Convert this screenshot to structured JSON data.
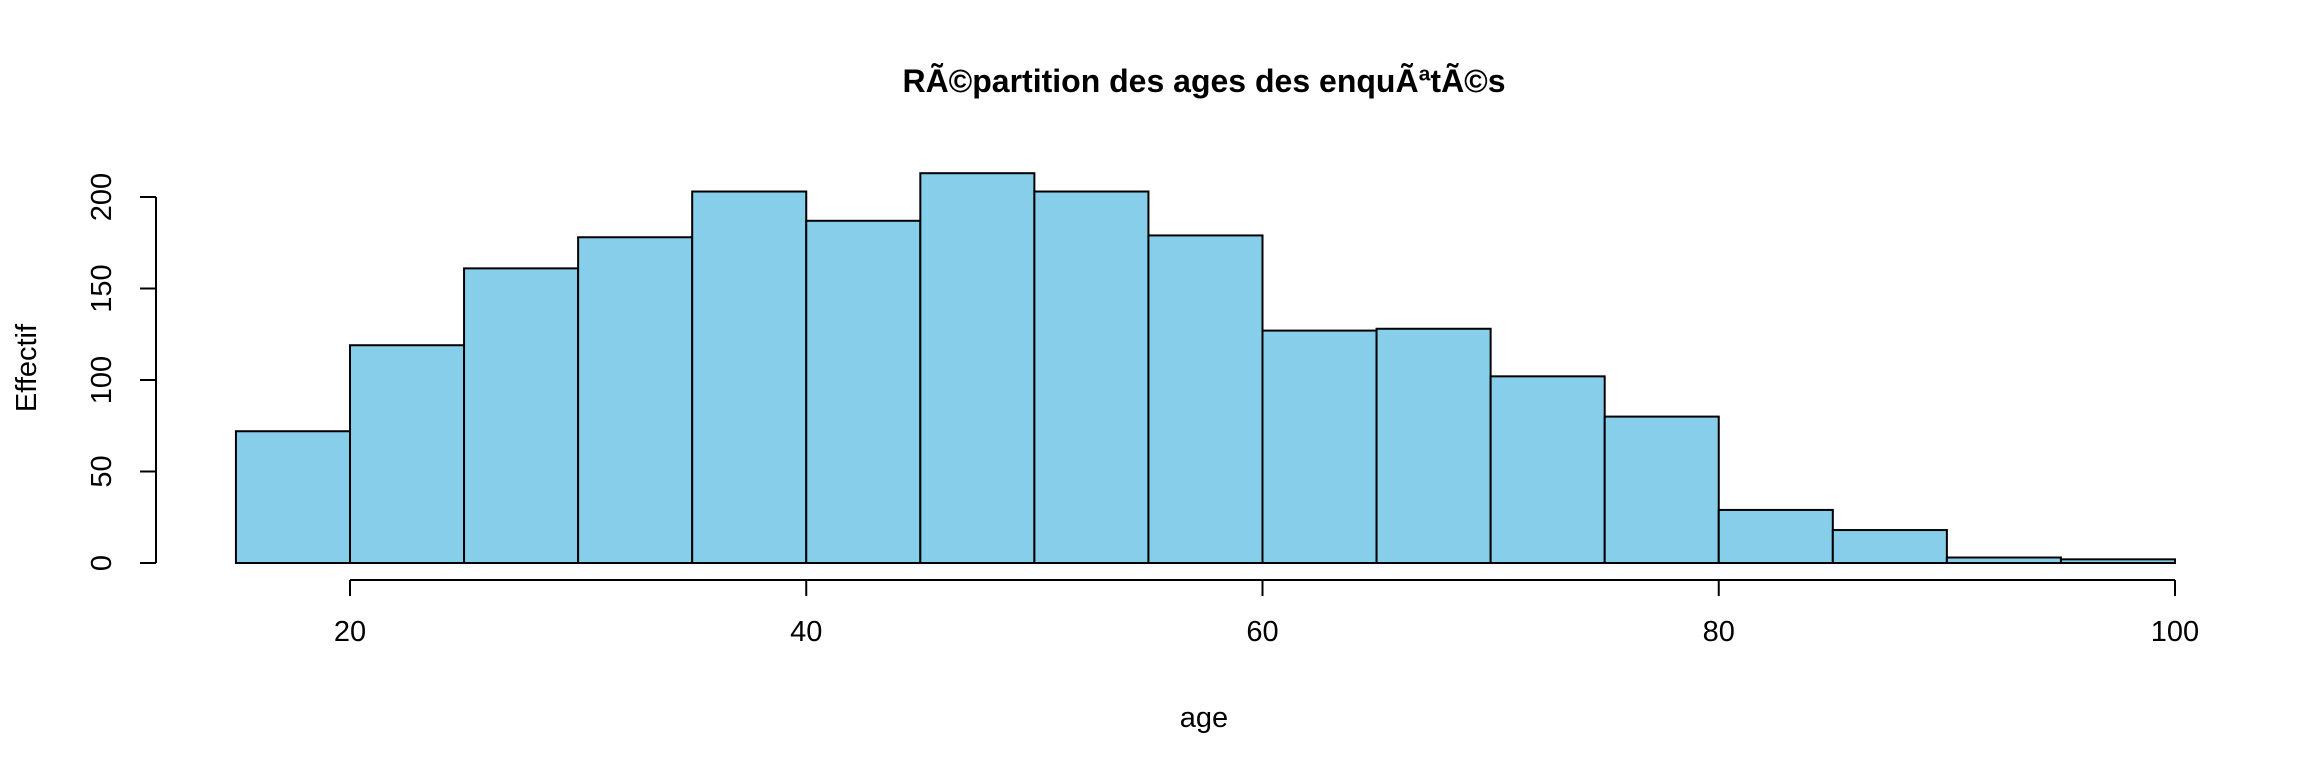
{
  "chart_data": {
    "type": "bar",
    "title": "RÃ©partition des ages des enquÃªtÃ©s",
    "xlabel": "age",
    "ylabel": "Effectif",
    "bins": [
      {
        "start": 15,
        "end": 20,
        "count": 72
      },
      {
        "start": 20,
        "end": 25,
        "count": 119
      },
      {
        "start": 25,
        "end": 30,
        "count": 161
      },
      {
        "start": 30,
        "end": 35,
        "count": 178
      },
      {
        "start": 35,
        "end": 40,
        "count": 203
      },
      {
        "start": 40,
        "end": 45,
        "count": 187
      },
      {
        "start": 45,
        "end": 50,
        "count": 213
      },
      {
        "start": 50,
        "end": 55,
        "count": 203
      },
      {
        "start": 55,
        "end": 60,
        "count": 179
      },
      {
        "start": 60,
        "end": 65,
        "count": 127
      },
      {
        "start": 65,
        "end": 70,
        "count": 128
      },
      {
        "start": 70,
        "end": 75,
        "count": 102
      },
      {
        "start": 75,
        "end": 80,
        "count": 80
      },
      {
        "start": 80,
        "end": 85,
        "count": 29
      },
      {
        "start": 85,
        "end": 90,
        "count": 18
      },
      {
        "start": 90,
        "end": 95,
        "count": 3
      },
      {
        "start": 95,
        "end": 100,
        "count": 2
      }
    ],
    "xticks": [
      20,
      40,
      60,
      80,
      100
    ],
    "yticks": [
      0,
      50,
      100,
      150,
      200
    ],
    "xlim": [
      15,
      100
    ],
    "ylim": [
      0,
      213
    ],
    "grid": false,
    "colors": {
      "bar_fill": "#87CEEB",
      "bar_stroke": "#000000"
    }
  }
}
